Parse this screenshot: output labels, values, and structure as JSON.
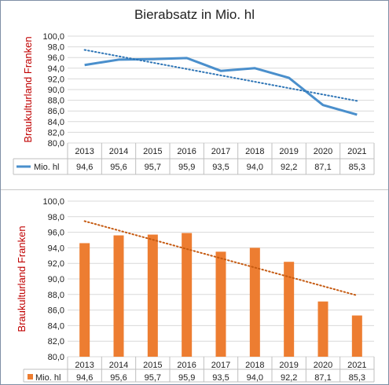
{
  "title": "Bierabsatz in Mio. hl",
  "colors": {
    "line": "#4a8fcc",
    "bar": "#ed7d31",
    "trend_line": "#2e75b6",
    "trend_bar": "#c55a11",
    "ylabel": "#c00000",
    "grid": "#d9d9d9"
  },
  "chart_data": [
    {
      "type": "line",
      "title": "Bierabsatz in Mio. hl",
      "ylabel": "Braukulturland Franken",
      "xlabel": "",
      "categories": [
        "2013",
        "2014",
        "2015",
        "2016",
        "2017",
        "2018",
        "2019",
        "2020",
        "2021"
      ],
      "series": [
        {
          "name": "Mio. hl",
          "values": [
            94.6,
            95.6,
            95.7,
            95.9,
            93.5,
            94.0,
            92.2,
            87.1,
            85.3
          ]
        }
      ],
      "value_labels": [
        "94,6",
        "95,6",
        "95,7",
        "95,9",
        "93,5",
        "94,0",
        "92,2",
        "87,1",
        "85,3"
      ],
      "trendline": "linear, dotted",
      "ylim": [
        80,
        100
      ],
      "ytick_labels": [
        "80,0",
        "82,0",
        "84,0",
        "86,0",
        "88,0",
        "90,0",
        "92,0",
        "94,0",
        "96,0",
        "98,0",
        "100,0"
      ],
      "grid": true,
      "legend": "data table"
    },
    {
      "type": "bar",
      "ylabel": "Braukulturland Franken",
      "xlabel": "",
      "categories": [
        "2013",
        "2014",
        "2015",
        "2016",
        "2017",
        "2018",
        "2019",
        "2020",
        "2021"
      ],
      "series": [
        {
          "name": "Mio. hl",
          "values": [
            94.6,
            95.6,
            95.7,
            95.9,
            93.5,
            94.0,
            92.2,
            87.1,
            85.3
          ]
        }
      ],
      "value_labels": [
        "94,6",
        "95,6",
        "95,7",
        "95,9",
        "93,5",
        "94,0",
        "92,2",
        "87,1",
        "85,3"
      ],
      "trendline": "linear, dotted",
      "ylim": [
        80,
        100
      ],
      "ytick_labels": [
        "80,0",
        "82,0",
        "84,0",
        "86,0",
        "88,0",
        "90,0",
        "92,0",
        "94,0",
        "96,0",
        "98,0",
        "100,0"
      ],
      "grid": true,
      "legend": "data table"
    }
  ]
}
